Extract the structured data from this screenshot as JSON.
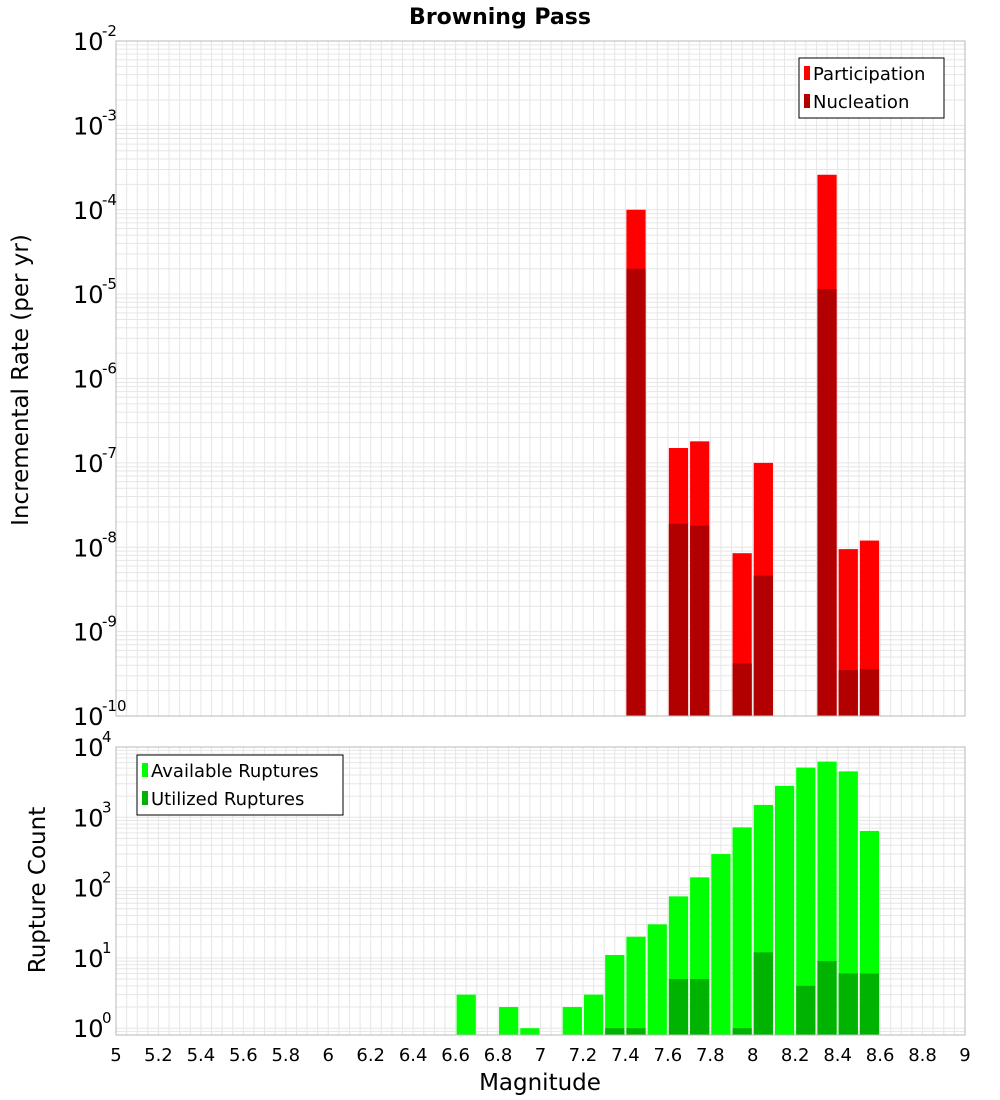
{
  "chart_data": [
    {
      "type": "bar",
      "title": "Browning Pass",
      "ylabel": "Incremental Rate (per yr)",
      "xlabel": "",
      "x_range": [
        5,
        9
      ],
      "y_scale": "log",
      "y_range": [
        1e-10,
        0.01
      ],
      "y_ticks": [
        {
          "base": "10",
          "exp": "-10"
        },
        {
          "base": "10",
          "exp": "-9"
        },
        {
          "base": "10",
          "exp": "-8"
        },
        {
          "base": "10",
          "exp": "-7"
        },
        {
          "base": "10",
          "exp": "-6"
        },
        {
          "base": "10",
          "exp": "-5"
        },
        {
          "base": "10",
          "exp": "-4"
        },
        {
          "base": "10",
          "exp": "-3"
        },
        {
          "base": "10",
          "exp": "-2"
        }
      ],
      "legend_position": "top-right",
      "grid": true,
      "series": [
        {
          "name": "Participation",
          "color": "#ff0000",
          "points": [
            {
              "x": 7.45,
              "y": 0.0001
            },
            {
              "x": 7.65,
              "y": 1.5e-07
            },
            {
              "x": 7.75,
              "y": 1.8e-07
            },
            {
              "x": 7.95,
              "y": 8.5e-09
            },
            {
              "x": 8.05,
              "y": 1e-07
            },
            {
              "x": 8.35,
              "y": 0.00026
            },
            {
              "x": 8.45,
              "y": 9.5e-09
            },
            {
              "x": 8.55,
              "y": 1.2e-08
            }
          ]
        },
        {
          "name": "Nucleation",
          "color": "#b20000",
          "points": [
            {
              "x": 7.45,
              "y": 2e-05
            },
            {
              "x": 7.65,
              "y": 1.9e-08
            },
            {
              "x": 7.75,
              "y": 1.8e-08
            },
            {
              "x": 7.95,
              "y": 4.2e-10
            },
            {
              "x": 8.05,
              "y": 4.6e-09
            },
            {
              "x": 8.35,
              "y": 1.15e-05
            },
            {
              "x": 8.45,
              "y": 3.5e-10
            },
            {
              "x": 8.55,
              "y": 3.6e-10
            }
          ]
        }
      ]
    },
    {
      "type": "bar",
      "title": "",
      "xlabel": "Magnitude",
      "ylabel": "Rupture Count",
      "x_range": [
        5,
        9
      ],
      "x_ticks": [
        "5",
        "5.2",
        "5.4",
        "5.6",
        "5.8",
        "6",
        "6.2",
        "6.4",
        "6.6",
        "6.8",
        "7",
        "7.2",
        "7.4",
        "7.6",
        "7.8",
        "8",
        "8.2",
        "8.4",
        "8.6",
        "8.8",
        "9"
      ],
      "y_scale": "log",
      "y_range": [
        0.8,
        10000
      ],
      "y_ticks": [
        {
          "base": "10",
          "exp": "0"
        },
        {
          "base": "10",
          "exp": "1"
        },
        {
          "base": "10",
          "exp": "2"
        },
        {
          "base": "10",
          "exp": "3"
        },
        {
          "base": "10",
          "exp": "4"
        }
      ],
      "legend_position": "top-left",
      "grid": true,
      "series": [
        {
          "name": "Available Ruptures",
          "color": "#00ff00",
          "points": [
            {
              "x": 6.65,
              "y": 3
            },
            {
              "x": 6.85,
              "y": 2
            },
            {
              "x": 6.95,
              "y": 1
            },
            {
              "x": 7.15,
              "y": 2
            },
            {
              "x": 7.25,
              "y": 3
            },
            {
              "x": 7.35,
              "y": 11
            },
            {
              "x": 7.45,
              "y": 20
            },
            {
              "x": 7.55,
              "y": 30
            },
            {
              "x": 7.65,
              "y": 75
            },
            {
              "x": 7.75,
              "y": 140
            },
            {
              "x": 7.85,
              "y": 300
            },
            {
              "x": 7.95,
              "y": 720
            },
            {
              "x": 8.05,
              "y": 1500
            },
            {
              "x": 8.15,
              "y": 2800
            },
            {
              "x": 8.25,
              "y": 5100
            },
            {
              "x": 8.35,
              "y": 6200
            },
            {
              "x": 8.45,
              "y": 4500
            },
            {
              "x": 8.55,
              "y": 640
            }
          ]
        },
        {
          "name": "Utilized Ruptures",
          "color": "#00b300",
          "points": [
            {
              "x": 7.35,
              "y": 1
            },
            {
              "x": 7.45,
              "y": 1
            },
            {
              "x": 7.65,
              "y": 5
            },
            {
              "x": 7.75,
              "y": 5
            },
            {
              "x": 7.95,
              "y": 1
            },
            {
              "x": 8.05,
              "y": 12
            },
            {
              "x": 8.25,
              "y": 4
            },
            {
              "x": 8.35,
              "y": 9
            },
            {
              "x": 8.45,
              "y": 6
            },
            {
              "x": 8.55,
              "y": 6
            }
          ]
        }
      ]
    }
  ]
}
